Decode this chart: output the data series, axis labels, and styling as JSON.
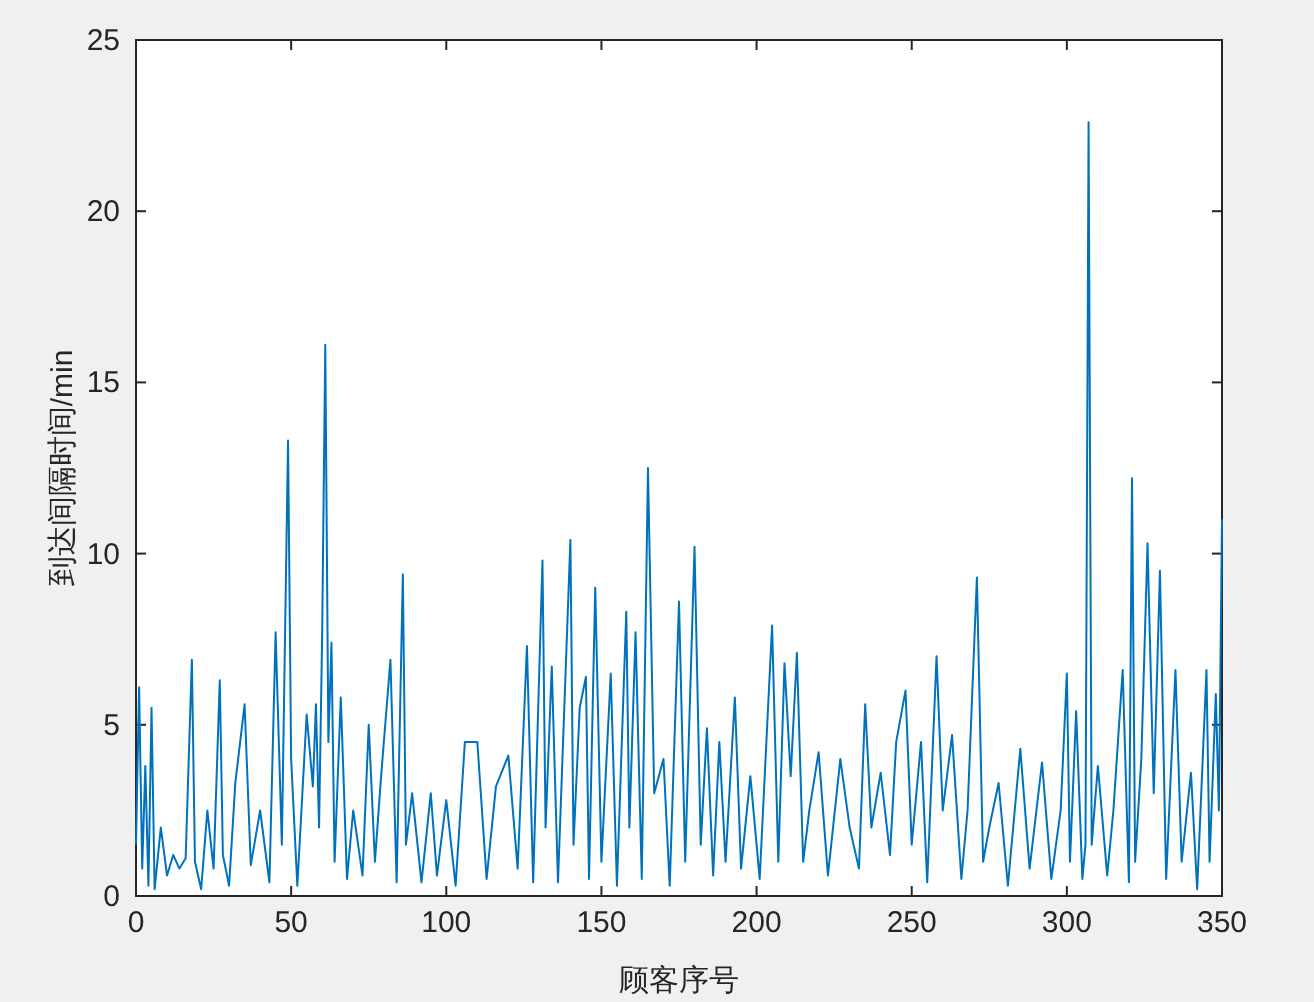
{
  "chart_data": {
    "type": "line",
    "xlabel": "顾客序号",
    "ylabel": "到达间隔时间/min",
    "x": [
      0,
      1,
      2,
      3,
      4,
      5,
      6,
      8,
      10,
      12,
      14,
      16,
      18,
      19,
      21,
      23,
      25,
      27,
      28,
      30,
      32,
      35,
      37,
      40,
      43,
      45,
      47,
      49,
      50,
      52,
      55,
      57,
      58,
      59,
      60,
      61,
      62,
      63,
      64,
      66,
      68,
      70,
      73,
      75,
      77,
      79,
      82,
      84,
      86,
      87,
      89,
      92,
      95,
      97,
      100,
      103,
      106,
      110,
      113,
      116,
      120,
      123,
      126,
      128,
      131,
      132,
      134,
      136,
      140,
      141,
      143,
      145,
      146,
      148,
      150,
      153,
      155,
      158,
      159,
      161,
      163,
      165,
      167,
      170,
      172,
      175,
      177,
      180,
      182,
      184,
      186,
      188,
      190,
      193,
      195,
      198,
      201,
      205,
      207,
      209,
      211,
      213,
      215,
      217,
      220,
      223,
      227,
      230,
      233,
      235,
      237,
      240,
      243,
      245,
      248,
      250,
      253,
      255,
      258,
      260,
      263,
      266,
      268,
      271,
      273,
      275,
      278,
      281,
      285,
      288,
      292,
      295,
      298,
      300,
      301,
      303,
      305,
      306,
      307,
      308,
      310,
      313,
      315,
      318,
      320,
      321,
      322,
      324,
      326,
      328,
      330,
      332,
      335,
      337,
      340,
      342,
      345,
      346,
      348,
      349,
      350
    ],
    "series": [
      {
        "color": "#0072bd",
        "values": [
          1.5,
          6.1,
          0.8,
          3.8,
          0.3,
          5.5,
          0.2,
          2.0,
          0.6,
          1.2,
          0.8,
          1.1,
          6.9,
          1.0,
          0.2,
          2.5,
          0.8,
          6.3,
          1.2,
          0.3,
          3.3,
          5.6,
          0.9,
          2.5,
          0.4,
          7.7,
          1.5,
          13.3,
          4.0,
          0.3,
          5.3,
          3.2,
          5.6,
          2.0,
          7.7,
          16.1,
          4.5,
          7.4,
          1.0,
          5.8,
          0.5,
          2.5,
          0.6,
          5.0,
          1.0,
          3.5,
          6.9,
          0.4,
          9.4,
          1.5,
          3.0,
          0.4,
          3.0,
          0.6,
          2.8,
          0.3,
          4.5,
          4.5,
          0.5,
          3.2,
          4.1,
          0.8,
          7.3,
          0.4,
          9.8,
          2.0,
          6.7,
          0.4,
          10.4,
          1.5,
          5.5,
          6.4,
          0.5,
          9.0,
          1.0,
          6.5,
          0.3,
          8.3,
          2.0,
          7.7,
          0.5,
          12.5,
          3.0,
          4.0,
          0.3,
          8.6,
          1.0,
          10.2,
          1.5,
          4.9,
          0.6,
          4.5,
          1.0,
          5.8,
          0.8,
          3.5,
          0.5,
          7.9,
          1.0,
          6.8,
          3.5,
          7.1,
          1.0,
          2.5,
          4.2,
          0.6,
          4.0,
          2.0,
          0.8,
          5.6,
          2.0,
          3.6,
          1.2,
          4.5,
          6.0,
          1.5,
          4.5,
          0.4,
          7.0,
          2.5,
          4.7,
          0.5,
          2.5,
          9.3,
          1.0,
          2.0,
          3.3,
          0.3,
          4.3,
          0.8,
          3.9,
          0.5,
          2.5,
          6.5,
          1.0,
          5.4,
          0.5,
          1.5,
          22.6,
          1.5,
          3.8,
          0.6,
          2.5,
          6.6,
          0.4,
          12.2,
          1.0,
          4.0,
          10.3,
          3.0,
          9.5,
          0.5,
          6.6,
          1.0,
          3.6,
          0.2,
          6.6,
          1.0,
          5.9,
          2.5,
          11.0
        ]
      }
    ],
    "xlim": [
      0,
      350
    ],
    "xticks": [
      0,
      50,
      100,
      150,
      200,
      250,
      300,
      350
    ],
    "ylim": [
      0,
      25
    ],
    "yticks": [
      0,
      5,
      10,
      15,
      20,
      25
    ]
  }
}
